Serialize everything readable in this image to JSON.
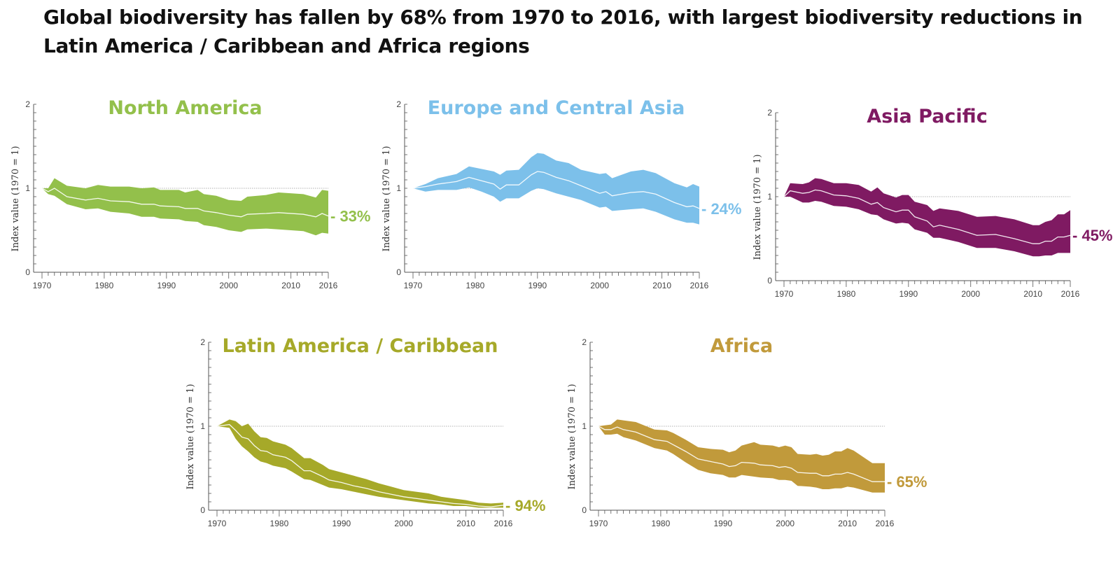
{
  "headline": "Global biodiversity has fallen by 68% from 1970 to 2016, with largest biodiversity reductions in Latin America / Caribbean and Africa regions",
  "chart_data": [
    {
      "type": "area",
      "title": "North America",
      "color": "#93c04b",
      "ylabel": "Index value (1970 = 1)",
      "xlabel": "",
      "ylim": [
        0,
        2
      ],
      "xlim": [
        1970,
        2016
      ],
      "x_ticks": [
        "1970",
        "1980",
        "1990",
        "2000",
        "2010",
        "2016"
      ],
      "y_ticks": [
        "0",
        "1",
        "2"
      ],
      "baseline": 1,
      "change_label": "- 33%",
      "x": [
        1970,
        1971,
        1972,
        1974,
        1977,
        1979,
        1981,
        1984,
        1986,
        1988,
        1989,
        1992,
        1993,
        1995,
        1996,
        1998,
        2000,
        2002,
        2003,
        2006,
        2008,
        2012,
        2014,
        2015,
        2016
      ],
      "mean": [
        1.0,
        0.96,
        1.0,
        0.9,
        0.86,
        0.88,
        0.85,
        0.84,
        0.81,
        0.81,
        0.79,
        0.78,
        0.76,
        0.76,
        0.73,
        0.71,
        0.68,
        0.66,
        0.69,
        0.7,
        0.71,
        0.69,
        0.66,
        0.7,
        0.67
      ],
      "upper": [
        1.0,
        1.0,
        1.12,
        1.03,
        1.0,
        1.04,
        1.02,
        1.02,
        1.0,
        1.01,
        0.98,
        0.98,
        0.95,
        0.98,
        0.93,
        0.91,
        0.86,
        0.85,
        0.9,
        0.92,
        0.95,
        0.93,
        0.89,
        0.98,
        0.97
      ],
      "lower": [
        1.0,
        0.93,
        0.91,
        0.81,
        0.75,
        0.76,
        0.72,
        0.7,
        0.66,
        0.66,
        0.64,
        0.63,
        0.61,
        0.6,
        0.56,
        0.54,
        0.5,
        0.48,
        0.51,
        0.52,
        0.51,
        0.49,
        0.44,
        0.47,
        0.46
      ]
    },
    {
      "type": "area",
      "title": "Europe and Central Asia",
      "color": "#7cc0ea",
      "ylabel": "Index value (1970 = 1)",
      "xlabel": "",
      "ylim": [
        0,
        2
      ],
      "xlim": [
        1970,
        2016
      ],
      "x_ticks": [
        "1970",
        "1980",
        "1990",
        "2000",
        "2010",
        "2016"
      ],
      "y_ticks": [
        "0",
        "1",
        "2"
      ],
      "baseline": 1,
      "change_label": "- 24%",
      "x": [
        1970,
        1972,
        1974,
        1977,
        1979,
        1981,
        1983,
        1984,
        1985,
        1987,
        1989,
        1990,
        1991,
        1993,
        1995,
        1997,
        2000,
        2001,
        2002,
        2005,
        2007,
        2009,
        2012,
        2014,
        2015,
        2016
      ],
      "mean": [
        1.0,
        1.02,
        1.05,
        1.08,
        1.13,
        1.09,
        1.05,
        0.99,
        1.04,
        1.04,
        1.16,
        1.2,
        1.19,
        1.13,
        1.09,
        1.03,
        0.94,
        0.96,
        0.91,
        0.95,
        0.96,
        0.93,
        0.83,
        0.78,
        0.79,
        0.76
      ],
      "upper": [
        1.0,
        1.05,
        1.12,
        1.17,
        1.26,
        1.23,
        1.2,
        1.16,
        1.21,
        1.22,
        1.37,
        1.42,
        1.41,
        1.33,
        1.3,
        1.22,
        1.17,
        1.18,
        1.12,
        1.2,
        1.22,
        1.18,
        1.06,
        1.01,
        1.05,
        1.02
      ],
      "lower": [
        1.0,
        0.96,
        0.98,
        0.98,
        1.01,
        0.96,
        0.9,
        0.84,
        0.88,
        0.88,
        0.97,
        1.0,
        0.99,
        0.94,
        0.9,
        0.86,
        0.77,
        0.78,
        0.73,
        0.75,
        0.76,
        0.72,
        0.63,
        0.59,
        0.59,
        0.57
      ]
    },
    {
      "type": "area",
      "title": "Asia Pacific",
      "color": "#7f1a62",
      "ylabel": "Index value (1970 = 1)",
      "xlabel": "",
      "ylim": [
        0,
        2
      ],
      "xlim": [
        1970,
        2016
      ],
      "x_ticks": [
        "1970",
        "1980",
        "1990",
        "2000",
        "2010",
        "2016"
      ],
      "y_ticks": [
        "0",
        "1",
        "2"
      ],
      "baseline": 1,
      "change_label": "- 45%",
      "x": [
        1970,
        1971,
        1973,
        1974,
        1975,
        1976,
        1978,
        1980,
        1982,
        1984,
        1985,
        1986,
        1988,
        1989,
        1990,
        1991,
        1993,
        1994,
        1995,
        1998,
        2001,
        2004,
        2007,
        2010,
        2011,
        2012,
        2013,
        2014,
        2015,
        2016
      ],
      "mean": [
        1.0,
        1.07,
        1.04,
        1.05,
        1.08,
        1.07,
        1.02,
        1.01,
        0.98,
        0.91,
        0.93,
        0.87,
        0.82,
        0.84,
        0.84,
        0.76,
        0.71,
        0.64,
        0.66,
        0.61,
        0.54,
        0.55,
        0.5,
        0.44,
        0.44,
        0.47,
        0.47,
        0.52,
        0.52,
        0.54
      ],
      "upper": [
        1.0,
        1.16,
        1.15,
        1.17,
        1.22,
        1.21,
        1.16,
        1.16,
        1.14,
        1.06,
        1.11,
        1.04,
        0.99,
        1.02,
        1.02,
        0.94,
        0.9,
        0.83,
        0.86,
        0.83,
        0.76,
        0.77,
        0.73,
        0.66,
        0.66,
        0.7,
        0.72,
        0.79,
        0.79,
        0.84
      ],
      "lower": [
        1.0,
        1.0,
        0.93,
        0.93,
        0.95,
        0.94,
        0.89,
        0.88,
        0.85,
        0.79,
        0.78,
        0.73,
        0.68,
        0.69,
        0.68,
        0.61,
        0.57,
        0.51,
        0.51,
        0.46,
        0.39,
        0.39,
        0.35,
        0.29,
        0.29,
        0.3,
        0.3,
        0.33,
        0.33,
        0.33
      ]
    },
    {
      "type": "area",
      "title": "Latin America / Caribbean",
      "color": "#a6a929",
      "ylabel": "Index value (1970 = 1)",
      "xlabel": "",
      "ylim": [
        0,
        2
      ],
      "xlim": [
        1970,
        2016
      ],
      "x_ticks": [
        "1970",
        "1980",
        "1990",
        "2000",
        "2010",
        "2016"
      ],
      "y_ticks": [
        "0",
        "1",
        "2"
      ],
      "baseline": 1,
      "change_label": "- 94%",
      "x": [
        1970,
        1972,
        1973,
        1974,
        1975,
        1976,
        1977,
        1978,
        1979,
        1981,
        1982,
        1984,
        1985,
        1987,
        1988,
        1990,
        1992,
        1994,
        1996,
        1998,
        2000,
        2002,
        2004,
        2006,
        2008,
        2010,
        2012,
        2014,
        2016
      ],
      "mean": [
        1.0,
        1.02,
        0.95,
        0.87,
        0.85,
        0.77,
        0.71,
        0.7,
        0.66,
        0.63,
        0.59,
        0.47,
        0.47,
        0.4,
        0.36,
        0.33,
        0.29,
        0.26,
        0.22,
        0.19,
        0.16,
        0.14,
        0.12,
        0.1,
        0.08,
        0.07,
        0.05,
        0.04,
        0.06
      ],
      "upper": [
        1.0,
        1.08,
        1.06,
        1.0,
        1.03,
        0.94,
        0.87,
        0.86,
        0.82,
        0.78,
        0.74,
        0.62,
        0.62,
        0.54,
        0.49,
        0.45,
        0.41,
        0.37,
        0.32,
        0.28,
        0.24,
        0.22,
        0.2,
        0.16,
        0.14,
        0.12,
        0.09,
        0.08,
        0.09
      ],
      "lower": [
        1.0,
        0.98,
        0.85,
        0.76,
        0.7,
        0.63,
        0.58,
        0.56,
        0.53,
        0.5,
        0.46,
        0.37,
        0.36,
        0.3,
        0.27,
        0.25,
        0.22,
        0.19,
        0.16,
        0.14,
        0.12,
        0.1,
        0.08,
        0.07,
        0.05,
        0.05,
        0.03,
        0.03,
        0.03
      ]
    },
    {
      "type": "area",
      "title": "Africa",
      "color": "#c19a3b",
      "ylabel": "Index value (1970 = 1)",
      "xlabel": "",
      "ylim": [
        0,
        2
      ],
      "xlim": [
        1970,
        2016
      ],
      "x_ticks": [
        "1970",
        "1980",
        "1990",
        "2000",
        "2010",
        "2016"
      ],
      "y_ticks": [
        "0",
        "1",
        "2"
      ],
      "baseline": 1,
      "change_label": "- 65%",
      "x": [
        1970,
        1971,
        1972,
        1973,
        1974,
        1976,
        1979,
        1981,
        1982,
        1984,
        1986,
        1988,
        1990,
        1991,
        1992,
        1993,
        1995,
        1996,
        1998,
        1999,
        2000,
        2001,
        2002,
        2004,
        2005,
        2006,
        2007,
        2008,
        2009,
        2010,
        2011,
        2014,
        2016
      ],
      "mean": [
        1.0,
        0.96,
        0.96,
        0.99,
        0.96,
        0.93,
        0.84,
        0.82,
        0.78,
        0.7,
        0.61,
        0.58,
        0.55,
        0.52,
        0.53,
        0.57,
        0.56,
        0.54,
        0.53,
        0.51,
        0.52,
        0.5,
        0.45,
        0.44,
        0.44,
        0.41,
        0.41,
        0.43,
        0.43,
        0.45,
        0.43,
        0.34,
        0.34
      ],
      "upper": [
        1.0,
        1.01,
        1.02,
        1.08,
        1.07,
        1.05,
        0.96,
        0.95,
        0.92,
        0.84,
        0.75,
        0.73,
        0.72,
        0.69,
        0.71,
        0.77,
        0.81,
        0.78,
        0.77,
        0.75,
        0.77,
        0.75,
        0.67,
        0.66,
        0.67,
        0.65,
        0.66,
        0.7,
        0.7,
        0.74,
        0.71,
        0.56,
        0.56
      ],
      "lower": [
        1.0,
        0.9,
        0.9,
        0.91,
        0.87,
        0.83,
        0.74,
        0.71,
        0.67,
        0.57,
        0.48,
        0.44,
        0.42,
        0.39,
        0.39,
        0.42,
        0.4,
        0.39,
        0.38,
        0.36,
        0.36,
        0.35,
        0.29,
        0.28,
        0.27,
        0.25,
        0.25,
        0.26,
        0.26,
        0.28,
        0.27,
        0.21,
        0.21
      ]
    }
  ]
}
